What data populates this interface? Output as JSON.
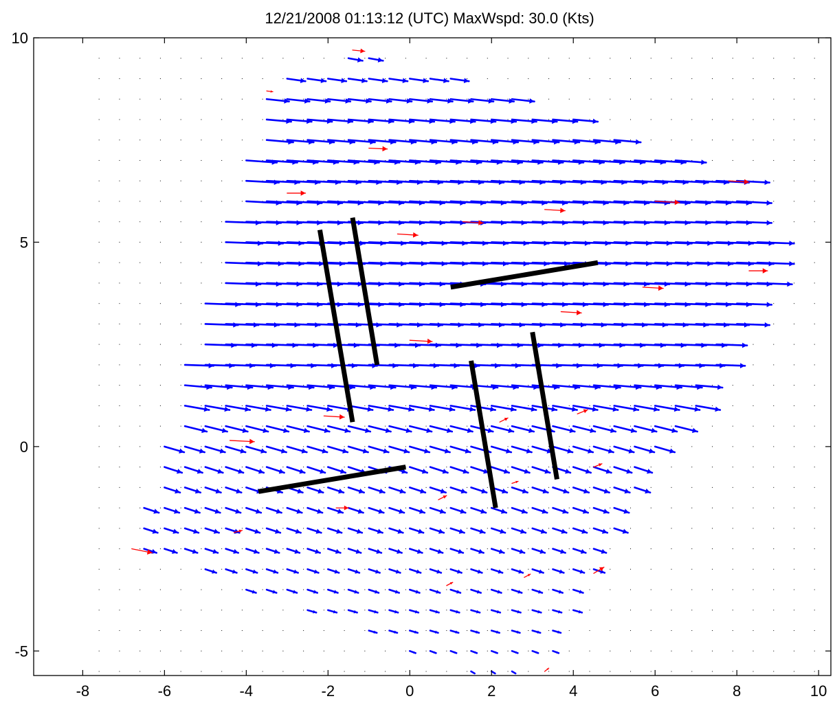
{
  "chart_data": {
    "type": "quiver",
    "title": "12/21/2008 01:13:12 (UTC)  MaxWspd: 30.0 (Kts)",
    "xlabel": "",
    "ylabel": "",
    "xlim": [
      -9.2,
      10.3
    ],
    "ylim": [
      -5.6,
      10
    ],
    "x_ticks": [
      -8,
      -6,
      -4,
      -2,
      0,
      2,
      4,
      6,
      8,
      10
    ],
    "y_ticks": [
      -5,
      0,
      5,
      10
    ],
    "grid": false,
    "colors": {
      "vectors": "#0000ff",
      "outlier_vectors": "#ff0000",
      "segments": "#000000",
      "grid_dots": "#000000"
    },
    "dot_grid": {
      "x_start": -7.6,
      "y_start": -5.5,
      "spacing": 0.5
    },
    "rows": [
      {
        "y": 9.5,
        "x_start": -1.5,
        "x_end": -1.0,
        "len": 0.35,
        "angle": -10
      },
      {
        "y": 9.0,
        "x_start": -3.0,
        "x_end": 1.0,
        "len": 0.45,
        "angle": -8
      },
      {
        "y": 8.5,
        "x_start": -3.5,
        "x_end": 2.5,
        "len": 0.55,
        "angle": -6
      },
      {
        "y": 8.0,
        "x_start": -3.5,
        "x_end": 4.0,
        "len": 0.6,
        "angle": -5
      },
      {
        "y": 7.5,
        "x_start": -3.5,
        "x_end": 5.0,
        "len": 0.65,
        "angle": -5
      },
      {
        "y": 7.0,
        "x_start": -4.0,
        "x_end": 6.5,
        "len": 0.75,
        "angle": -4
      },
      {
        "y": 6.5,
        "x_start": -4.0,
        "x_end": 8.0,
        "len": 0.8,
        "angle": -3
      },
      {
        "y": 6.0,
        "x_start": -4.0,
        "x_end": 8.0,
        "len": 0.85,
        "angle": -3
      },
      {
        "y": 5.5,
        "x_start": -4.5,
        "x_end": 8.0,
        "len": 0.85,
        "angle": -2
      },
      {
        "y": 5.0,
        "x_start": -4.5,
        "x_end": 8.5,
        "len": 0.9,
        "angle": -2
      },
      {
        "y": 4.5,
        "x_start": -4.5,
        "x_end": 8.5,
        "len": 0.9,
        "angle": -2
      },
      {
        "y": 4.0,
        "x_start": -4.5,
        "x_end": 8.5,
        "len": 0.85,
        "angle": -2
      },
      {
        "y": 3.5,
        "x_start": -5.0,
        "x_end": 8.0,
        "len": 0.85,
        "angle": -2
      },
      {
        "y": 3.0,
        "x_start": -5.0,
        "x_end": 8.0,
        "len": 0.8,
        "angle": -2
      },
      {
        "y": 2.5,
        "x_start": -5.0,
        "x_end": 7.5,
        "len": 0.75,
        "angle": -2
      },
      {
        "y": 2.0,
        "x_start": -5.5,
        "x_end": 7.5,
        "len": 0.7,
        "angle": -2
      },
      {
        "y": 1.5,
        "x_start": -5.5,
        "x_end": 7.0,
        "len": 0.65,
        "angle": -5
      },
      {
        "y": 1.0,
        "x_start": -5.5,
        "x_end": 7.0,
        "len": 0.6,
        "angle": -10
      },
      {
        "y": 0.5,
        "x_start": -5.5,
        "x_end": 6.5,
        "len": 0.55,
        "angle": -14
      },
      {
        "y": 0.0,
        "x_start": -6.0,
        "x_end": 6.0,
        "len": 0.5,
        "angle": -16
      },
      {
        "y": -0.5,
        "x_start": -6.0,
        "x_end": 5.5,
        "len": 0.45,
        "angle": -18
      },
      {
        "y": -1.0,
        "x_start": -6.0,
        "x_end": 5.5,
        "len": 0.4,
        "angle": -18
      },
      {
        "y": -1.5,
        "x_start": -6.5,
        "x_end": 5.0,
        "len": 0.38,
        "angle": -18
      },
      {
        "y": -2.0,
        "x_start": -6.5,
        "x_end": 5.0,
        "len": 0.35,
        "angle": -18
      },
      {
        "y": -2.5,
        "x_start": -6.5,
        "x_end": 4.5,
        "len": 0.32,
        "angle": -18
      },
      {
        "y": -3.0,
        "x_start": -5.0,
        "x_end": 4.5,
        "len": 0.28,
        "angle": -18
      },
      {
        "y": -3.5,
        "x_start": -4.0,
        "x_end": 4.0,
        "len": 0.25,
        "angle": -18
      },
      {
        "y": -4.0,
        "x_start": -2.5,
        "x_end": 4.0,
        "len": 0.22,
        "angle": -16
      },
      {
        "y": -4.5,
        "x_start": -1.0,
        "x_end": 3.5,
        "len": 0.2,
        "angle": -16
      },
      {
        "y": -5.0,
        "x_start": 0.0,
        "x_end": 3.5,
        "len": 0.15,
        "angle": -20
      },
      {
        "y": -5.5,
        "x_start": 1.5,
        "x_end": 2.5,
        "len": 0.1,
        "angle": -30
      }
    ],
    "outlier_vectors": [
      {
        "x": -1.4,
        "y": 9.7,
        "dx": 0.3,
        "dy": -0.03
      },
      {
        "x": -3.5,
        "y": 8.7,
        "dx": 0.15,
        "dy": -0.02
      },
      {
        "x": -1.0,
        "y": 7.3,
        "dx": 0.45,
        "dy": -0.02
      },
      {
        "x": -3.0,
        "y": 6.2,
        "dx": 0.45,
        "dy": 0.0
      },
      {
        "x": 6.0,
        "y": 6.0,
        "dx": 0.6,
        "dy": -0.03
      },
      {
        "x": 7.8,
        "y": 6.5,
        "dx": 0.5,
        "dy": -0.03
      },
      {
        "x": 3.3,
        "y": 5.8,
        "dx": 0.5,
        "dy": -0.03
      },
      {
        "x": 1.3,
        "y": 5.5,
        "dx": 0.5,
        "dy": -0.03
      },
      {
        "x": -0.3,
        "y": 5.2,
        "dx": 0.5,
        "dy": -0.03
      },
      {
        "x": 8.3,
        "y": 4.3,
        "dx": 0.45,
        "dy": 0.0
      },
      {
        "x": 5.7,
        "y": 3.9,
        "dx": 0.5,
        "dy": -0.03
      },
      {
        "x": 3.7,
        "y": 3.3,
        "dx": 0.5,
        "dy": -0.03
      },
      {
        "x": -0.0,
        "y": 2.6,
        "dx": 0.55,
        "dy": -0.03
      },
      {
        "x": -2.1,
        "y": 0.75,
        "dx": 0.5,
        "dy": -0.03
      },
      {
        "x": -4.4,
        "y": 0.15,
        "dx": 0.6,
        "dy": -0.03
      },
      {
        "x": -6.8,
        "y": -2.5,
        "dx": 0.5,
        "dy": -0.1
      },
      {
        "x": -4.3,
        "y": -2.1,
        "dx": 0.2,
        "dy": 0.05
      },
      {
        "x": -1.8,
        "y": -1.5,
        "dx": 0.3,
        "dy": 0.0
      },
      {
        "x": 0.7,
        "y": -1.3,
        "dx": 0.2,
        "dy": 0.1
      },
      {
        "x": 2.2,
        "y": 0.6,
        "dx": 0.2,
        "dy": 0.1
      },
      {
        "x": 4.1,
        "y": 0.8,
        "dx": 0.25,
        "dy": 0.1
      },
      {
        "x": 4.5,
        "y": -0.5,
        "dx": 0.2,
        "dy": 0.08
      },
      {
        "x": 2.5,
        "y": -0.9,
        "dx": 0.15,
        "dy": 0.05
      },
      {
        "x": 4.5,
        "y": -3.1,
        "dx": 0.25,
        "dy": 0.15
      },
      {
        "x": 2.8,
        "y": -3.2,
        "dx": 0.15,
        "dy": 0.08
      },
      {
        "x": 0.9,
        "y": -3.4,
        "dx": 0.15,
        "dy": 0.08
      },
      {
        "x": 3.3,
        "y": -5.5,
        "dx": 0.1,
        "dy": 0.08
      }
    ],
    "segments": [
      {
        "x1": -2.2,
        "y1": 5.3,
        "x2": -1.4,
        "y2": 0.6
      },
      {
        "x1": -1.4,
        "y1": 5.6,
        "x2": -0.8,
        "y2": 2.0
      },
      {
        "x1": 1.0,
        "y1": 3.9,
        "x2": 4.6,
        "y2": 4.5
      },
      {
        "x1": -3.7,
        "y1": -1.1,
        "x2": -0.1,
        "y2": -0.5
      },
      {
        "x1": 1.5,
        "y1": 2.1,
        "x2": 2.1,
        "y2": -1.5
      },
      {
        "x1": 3.0,
        "y1": 2.8,
        "x2": 3.6,
        "y2": -0.8
      }
    ]
  }
}
